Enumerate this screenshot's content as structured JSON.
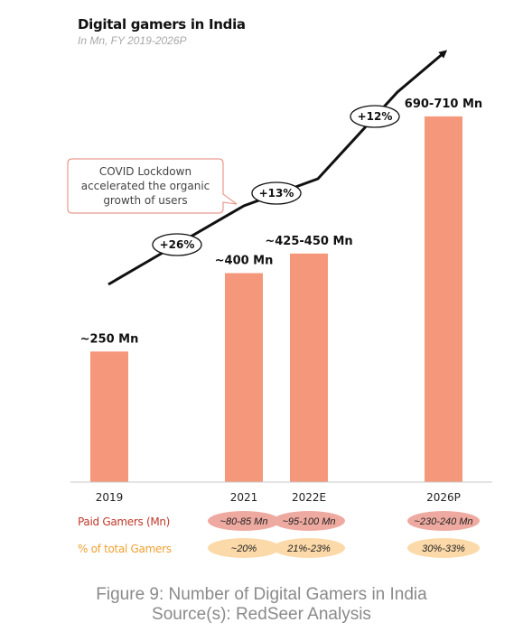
{
  "colors": {
    "bar": "#f4977a",
    "paid_pill": "#eeaaa0",
    "pct_pill": "#fbd9a8",
    "paid_label": "#c0392b",
    "pct_label": "#f0a030",
    "note_border": "#e99a90"
  },
  "chart_data": {
    "type": "bar",
    "title": "Digital gamers in India",
    "subtitle": "In Mn, FY 2019-2026P",
    "categories": [
      "2019",
      "2021",
      "2022E",
      "2026P"
    ],
    "values": [
      250,
      400,
      437.5,
      700
    ],
    "value_labels": [
      "~250 Mn",
      "~400 Mn",
      "~425-450 Mn",
      "690-710 Mn"
    ],
    "ylim": [
      0,
      750
    ],
    "rows": [
      {
        "label": "Paid Gamers (Mn)",
        "values": [
          "",
          "~80-85 Mn",
          "~95-100 Mn",
          "~230-240 Mn"
        ]
      },
      {
        "label": "% of total Gamers",
        "values": [
          "",
          "~20%",
          "21%-23%",
          "30%-33%"
        ]
      }
    ],
    "growth_labels": [
      "+26%",
      "+13%",
      "+12%"
    ],
    "annotation": [
      "COVID Lockdown",
      "accelerated the organic",
      "growth of users"
    ]
  },
  "caption": {
    "line1": "Figure 9: Number of Digital Gamers in India",
    "line2": "Source(s): RedSeer Analysis"
  }
}
